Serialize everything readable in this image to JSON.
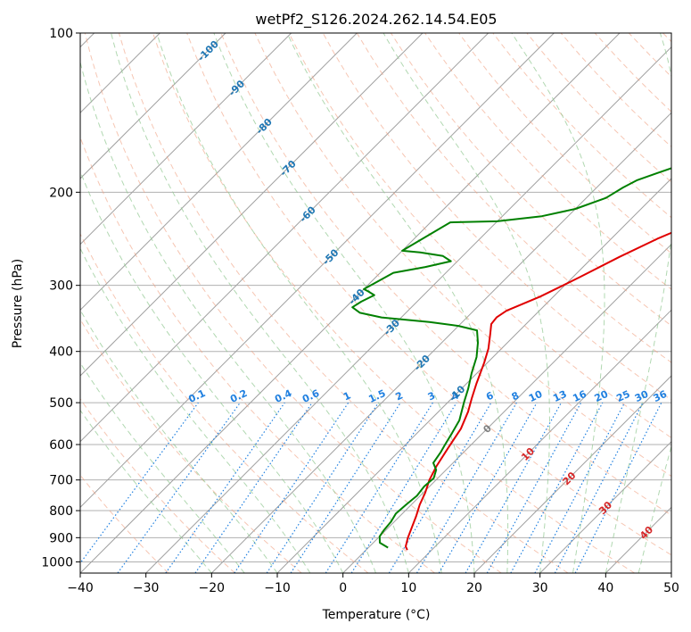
{
  "chart_data": {
    "type": "line",
    "title": "wetPf2_S126.2024.262.14.54.E05",
    "xlabel": "Temperature (°C)",
    "ylabel": "Pressure (hPa)",
    "xlim": [
      -40,
      50
    ],
    "ylim": [
      1050,
      100
    ],
    "y_scale": "log",
    "grid": true,
    "x_ticks": [
      "−40",
      "−30",
      "−20",
      "−10",
      "0",
      "10",
      "20",
      "30",
      "40",
      "50"
    ],
    "x_tick_values": [
      -40,
      -30,
      -20,
      -10,
      0,
      10,
      20,
      30,
      40,
      50
    ],
    "y_ticks": [
      "1000",
      "900",
      "800",
      "700",
      "600",
      "500",
      "400",
      "300",
      "200",
      "100"
    ],
    "y_tick_values": [
      1000,
      900,
      800,
      700,
      600,
      500,
      400,
      300,
      200,
      100
    ],
    "series": [
      {
        "color": "#e00000",
        "points": [
          [
            6.3,
            950
          ],
          [
            5.5,
            935
          ],
          [
            4.5,
            900
          ],
          [
            2.5,
            820
          ],
          [
            1.3,
            780
          ],
          [
            0.3,
            740
          ],
          [
            -1,
            700
          ],
          [
            -2,
            660
          ],
          [
            -3,
            610
          ],
          [
            -4,
            560
          ],
          [
            -5.5,
            520
          ],
          [
            -7,
            490
          ],
          [
            -8.5,
            460
          ],
          [
            -10.5,
            420
          ],
          [
            -12,
            395
          ],
          [
            -14,
            370
          ],
          [
            -15.3,
            355
          ],
          [
            -15.5,
            345
          ],
          [
            -15,
            335
          ],
          [
            -12,
            315
          ],
          [
            -9,
            290
          ],
          [
            -6,
            265
          ],
          [
            -3,
            245
          ],
          [
            0,
            230
          ],
          [
            3,
            214
          ],
          [
            6,
            200
          ],
          [
            9,
            185
          ],
          [
            12,
            170
          ],
          [
            16,
            155
          ],
          [
            20,
            143
          ],
          [
            25,
            131
          ],
          [
            28,
            122
          ],
          [
            30,
            114
          ],
          [
            32,
            106
          ],
          [
            34,
            100
          ]
        ],
        "annotations": []
      },
      {
        "color": "#008000",
        "points": [
          [
            3,
            940
          ],
          [
            1,
            920
          ],
          [
            0,
            895
          ],
          [
            -0.3,
            870
          ],
          [
            -0.5,
            840
          ],
          [
            -1,
            810
          ],
          [
            -0.8,
            780
          ],
          [
            -0.5,
            750
          ],
          [
            -0.8,
            720
          ],
          [
            -0.6,
            695
          ],
          [
            -1.5,
            670
          ],
          [
            -3,
            650
          ],
          [
            -3.5,
            620
          ],
          [
            -4,
            600
          ],
          [
            -4.7,
            570
          ],
          [
            -5.5,
            540
          ],
          [
            -7.5,
            500
          ],
          [
            -9,
            470
          ],
          [
            -10.8,
            440
          ],
          [
            -12.5,
            410
          ],
          [
            -14.5,
            385
          ],
          [
            -16.5,
            365
          ],
          [
            -20,
            358
          ],
          [
            -25,
            352
          ],
          [
            -33,
            345
          ],
          [
            -37,
            338
          ],
          [
            -39,
            330
          ],
          [
            -38.5,
            322
          ],
          [
            -37.5,
            313
          ],
          [
            -39,
            308
          ],
          [
            -40,
            305
          ],
          [
            -38,
            284
          ],
          [
            -34,
            277
          ],
          [
            -31,
            270
          ],
          [
            -33,
            264
          ],
          [
            -37,
            260
          ],
          [
            -40,
            258
          ],
          [
            -37,
            228
          ],
          [
            -30,
            227
          ],
          [
            -24,
            222
          ],
          [
            -20,
            215
          ],
          [
            -17,
            205
          ],
          [
            -16,
            196
          ],
          [
            -15,
            190
          ],
          [
            -13,
            184
          ],
          [
            -10,
            176
          ],
          [
            -9,
            168
          ],
          [
            -9,
            155
          ],
          [
            -9,
            145
          ],
          [
            -8,
            137
          ],
          [
            -6,
            130
          ],
          [
            -3,
            122
          ],
          [
            -0.5,
            114
          ],
          [
            0.5,
            107
          ],
          [
            1.5,
            100
          ]
        ],
        "annotations": []
      }
    ],
    "isotherm_labels": [
      "-100",
      "-90",
      "-80",
      "-70",
      "-60",
      "-50",
      "-40",
      "-30",
      "-20",
      "-10",
      "0",
      "10",
      "20",
      "30",
      "40"
    ],
    "mixing_ratio_labels": [
      "0.1",
      "0.2",
      "0.4",
      "0.6",
      "1",
      "1.5",
      "2",
      "3",
      "4",
      "6",
      "8",
      "10",
      "13",
      "16",
      "20",
      "25",
      "30",
      "36"
    ],
    "mixing_ratio_values": [
      0.1,
      0.2,
      0.4,
      0.6,
      1,
      1.5,
      2,
      3,
      4,
      6,
      8,
      10,
      13,
      16,
      20,
      25,
      30,
      36
    ]
  },
  "colors": {
    "temperature": "#e00000",
    "dewpoint": "#008000",
    "isotherm": "#a0a0a0",
    "dry_adiabat": "#f0a080",
    "moist_adiabat": "#90c890",
    "mixing_ratio": "#2080e0",
    "label_blue": "#1f77b4",
    "label_red": "#d62728"
  }
}
